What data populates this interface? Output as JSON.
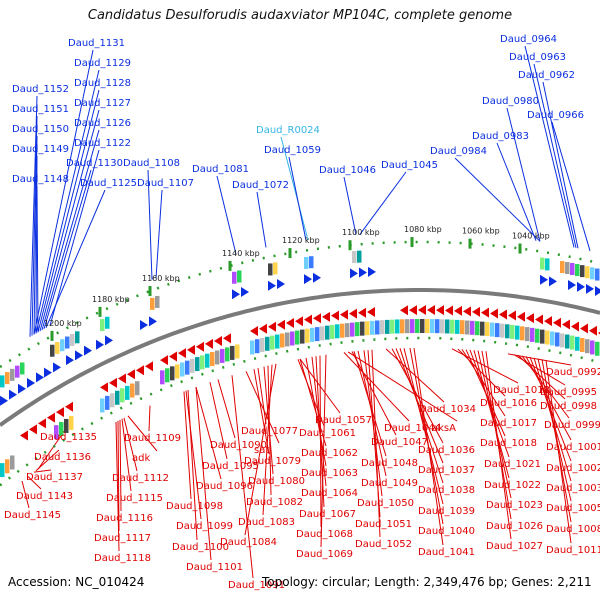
{
  "title": "Candidatus Desulforudis audaxviator MP104C, complete genome",
  "footer": {
    "accession": "Accession: NC_010424",
    "summary": "Topology: circular; Length: 2,349,476 bp; Genes: 2,211"
  },
  "colors": {
    "forward": "#0b2fe0",
    "reverse": "#e00000",
    "rna": "#33b6e6",
    "backbone": "#7a7a7a",
    "tick": "#2a9a2a"
  },
  "ticks": [
    "1200 kbp",
    "1180 kbp",
    "1160 kbp",
    "1140 kbp",
    "1120 kbp",
    "1100 kbp",
    "1080 kbp",
    "1060 kbp",
    "1040 kbp"
  ],
  "top_labels": [
    "Daud_1131",
    "Daud_1129",
    "Daud_1152",
    "Daud_1128",
    "Daud_1151",
    "Daud_1127",
    "Daud_1150",
    "Daud_1126",
    "Daud_1122",
    "Daud_1149",
    "Daud_1130",
    "Daud_1108",
    "Daud_1148",
    "Daud_1125",
    "Daud_1107",
    "Daud_1081",
    "Daud_1072",
    "Daud_R0024",
    "Daud_1059",
    "Daud_1046",
    "Daud_1045",
    "Daud_0984",
    "Daud_0983",
    "Daud_0980",
    "Daud_0964",
    "Daud_0963",
    "Daud_0962",
    "Daud_0966"
  ],
  "bottom_labels": [
    "Daud_1135",
    "Daud_1136",
    "Daud_1137",
    "Daud_1143",
    "Daud_1145",
    "Daud_1109",
    "adk",
    "Daud_1112",
    "Daud_1115",
    "Daud_1116",
    "Daud_1117",
    "Daud_1118",
    "Daud_1090",
    "Daud_1095",
    "Daud_1096",
    "Daud_1098",
    "Daud_1099",
    "Daud_1100",
    "Daud_1101",
    "Daud_1091",
    "Daud_1077",
    "sat",
    "Daud_1079",
    "Daud_1080",
    "Daud_1082",
    "Daud_1083",
    "Daud_1084",
    "Daud_1057",
    "Daud_1061",
    "Daud_1062",
    "Daud_1063",
    "Daud_1064",
    "Daud_1067",
    "Daud_1068",
    "Daud_1069",
    "Daud_1044",
    "aksA",
    "Daud_1047",
    "Daud_1048",
    "Daud_1049",
    "Daud_1050",
    "Daud_1051",
    "Daud_1052",
    "Daud_1034",
    "Daud_1036",
    "Daud_1037",
    "Daud_1038",
    "Daud_1039",
    "Daud_1040",
    "Daud_1041",
    "Daud_1013",
    "Daud_1016",
    "Daud_1017",
    "Daud_1018",
    "Daud_1021",
    "Daud_1022",
    "Daud_1023",
    "Daud_1026",
    "Daud_1027",
    "Daud_0992",
    "Daud_0995",
    "Daud_0998",
    "Daud_0999",
    "Daud_1001",
    "Daud_1002",
    "Daud_1003",
    "Daud_1005",
    "Daud_1008",
    "Daud_1011"
  ]
}
